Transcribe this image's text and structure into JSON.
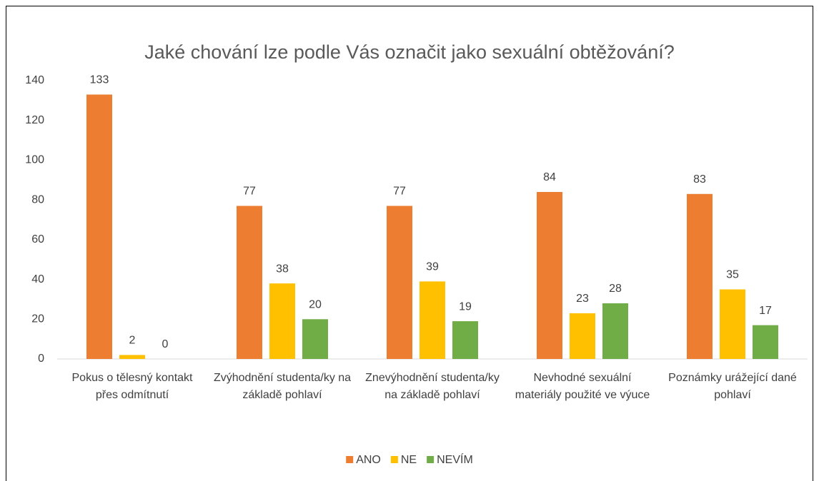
{
  "chart_data": {
    "type": "bar",
    "title": "Jaké chování lze podle Vás označit jako sexuální obtěžování?",
    "categories": [
      "Pokus o tělesný kontakt přes odmítnutí",
      "Zvýhodnění studenta/ky na základě pohlaví",
      "Znevýhodnění studenta/ky na základě pohlaví",
      "Nevhodné sexuální materiály použité ve výuce",
      "Poznámky urážející dané pohlaví"
    ],
    "series": [
      {
        "name": "ANO",
        "color": "#ed7d31",
        "values": [
          133,
          77,
          77,
          84,
          83
        ]
      },
      {
        "name": "NE",
        "color": "#ffc000",
        "values": [
          2,
          38,
          39,
          23,
          35
        ]
      },
      {
        "name": "NEVÍM",
        "color": "#70ad47",
        "values": [
          0,
          20,
          19,
          28,
          17
        ]
      }
    ],
    "ylim": [
      0,
      140
    ],
    "yticks": [
      0,
      20,
      40,
      60,
      80,
      100,
      120,
      140
    ],
    "grid": false,
    "legend": "bottom"
  }
}
